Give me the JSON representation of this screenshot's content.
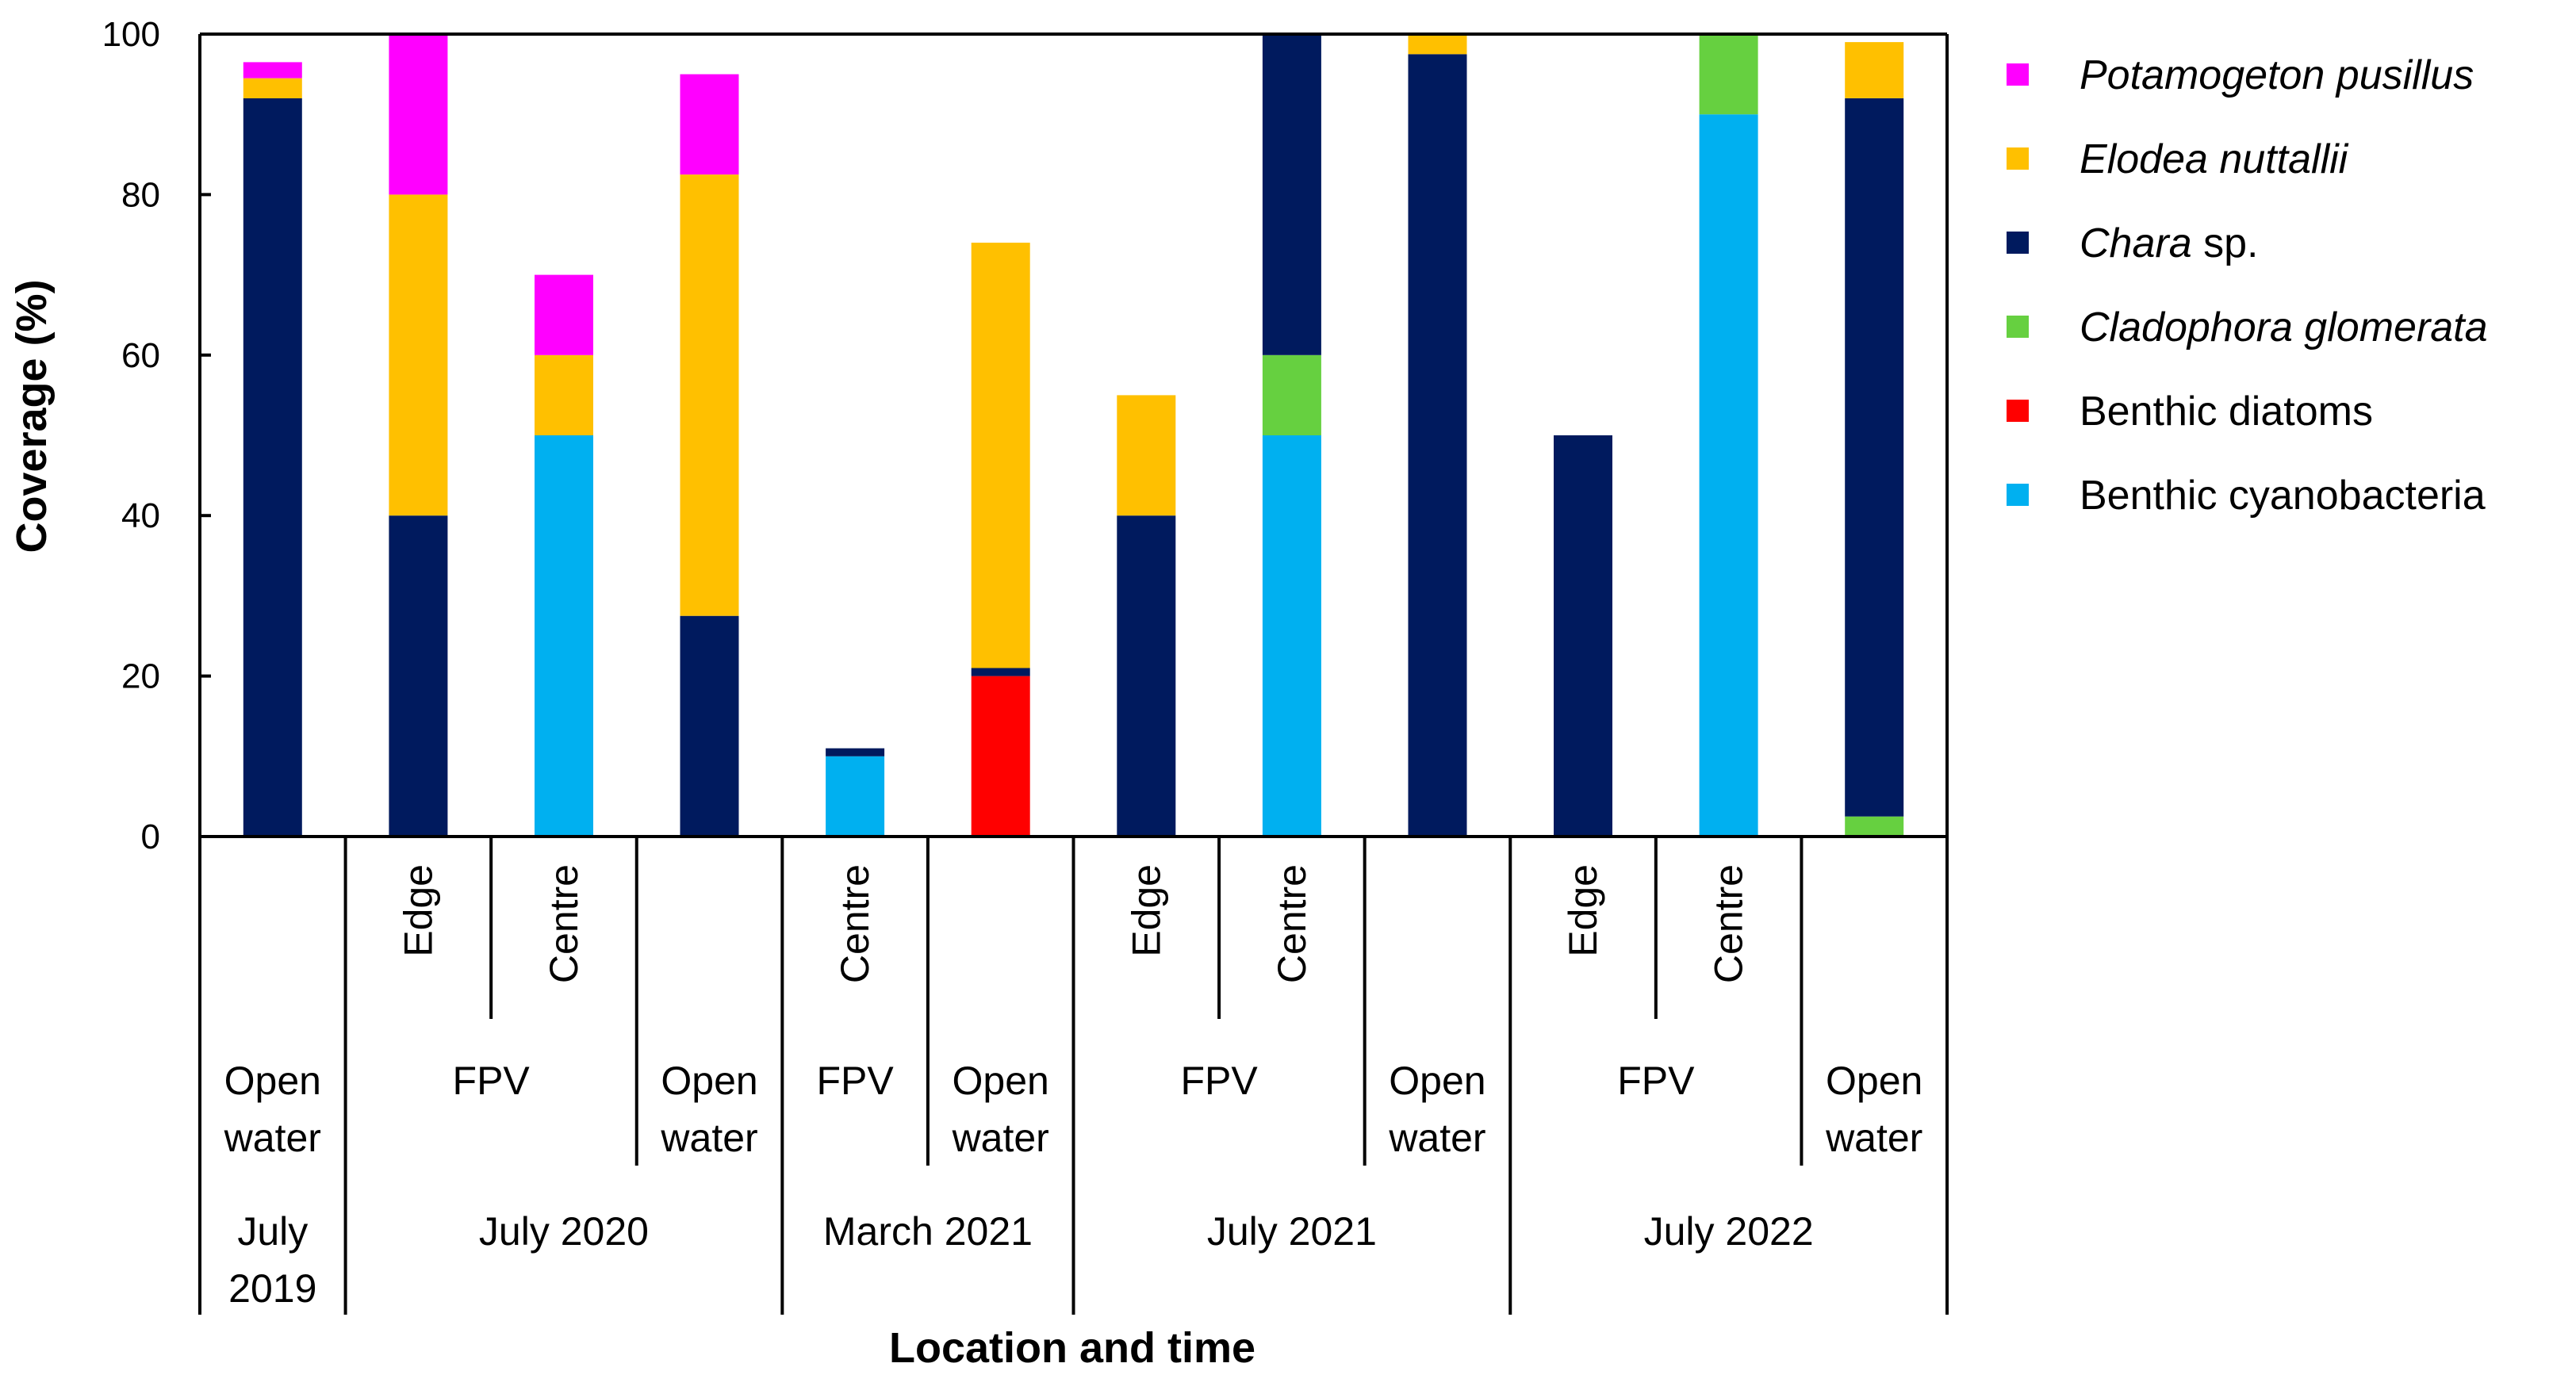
{
  "chart_data": {
    "type": "bar",
    "stacked": true,
    "xlabel": "Location and time",
    "ylabel": "Coverage (%)",
    "ylim": [
      0,
      100
    ],
    "yticks": [
      0,
      20,
      40,
      60,
      80,
      100
    ],
    "grid": false,
    "legend_position": "right",
    "categories": [
      {
        "sub": "",
        "location": "Open water",
        "time": "July 2019"
      },
      {
        "sub": "Edge",
        "location": "FPV",
        "time": "July 2020"
      },
      {
        "sub": "Centre",
        "location": "FPV",
        "time": "July 2020"
      },
      {
        "sub": "",
        "location": "Open water",
        "time": "July 2020"
      },
      {
        "sub": "Centre",
        "location": "FPV",
        "time": "March 2021"
      },
      {
        "sub": "",
        "location": "Open water",
        "time": "March 2021"
      },
      {
        "sub": "Edge",
        "location": "FPV",
        "time": "July 2021"
      },
      {
        "sub": "Centre",
        "location": "FPV",
        "time": "July 2021"
      },
      {
        "sub": "",
        "location": "Open water",
        "time": "July 2021"
      },
      {
        "sub": "Edge",
        "location": "FPV",
        "time": "July 2022"
      },
      {
        "sub": "Centre",
        "location": "FPV",
        "time": "July 2022"
      },
      {
        "sub": "",
        "location": "Open water",
        "time": "July 2022"
      }
    ],
    "tier_labels": {
      "sub": [
        "Edge",
        "Centre",
        "Centre",
        "Edge",
        "Centre",
        "Edge",
        "Centre"
      ],
      "location": [
        [
          "Open",
          "water"
        ],
        [
          "FPV"
        ],
        [
          "Open",
          "water"
        ],
        [
          "FPV"
        ],
        [
          "Open",
          "water"
        ],
        [
          "FPV"
        ],
        [
          "Open",
          "water"
        ],
        [
          "FPV"
        ],
        [
          "Open",
          "water"
        ]
      ],
      "time": [
        [
          "July",
          "2019"
        ],
        [
          "July 2020"
        ],
        [
          "March 2021"
        ],
        [
          "July 2021"
        ],
        [
          "July 2022"
        ]
      ]
    },
    "series": [
      {
        "name": "Benthic cyanobacteria",
        "italic": false,
        "color": "#00B0F0",
        "values": [
          0,
          0,
          50,
          0,
          10,
          0,
          0,
          50,
          0,
          0,
          90,
          0
        ]
      },
      {
        "name": "Benthic diatoms",
        "italic": false,
        "color": "#FF0000",
        "values": [
          0,
          0,
          0,
          0,
          0,
          20,
          0,
          0,
          0,
          0,
          0,
          0
        ]
      },
      {
        "name": "Cladophora glomerata",
        "italic": true,
        "color": "#66D040",
        "values": [
          0,
          0,
          0,
          0,
          0,
          0,
          0,
          10,
          0,
          0,
          10,
          2.5
        ]
      },
      {
        "name": "Chara sp.",
        "italic_part": "Chara",
        "plain_part": " sp.",
        "color": "#001A5E",
        "values": [
          92,
          40,
          0,
          27.5,
          1,
          1,
          40,
          40,
          97.5,
          50,
          0,
          89.5
        ]
      },
      {
        "name": "Elodea nuttallii",
        "italic": true,
        "color": "#FFC000",
        "values": [
          2.5,
          40,
          10,
          55,
          0,
          53,
          15,
          0,
          2.5,
          0,
          0,
          7
        ]
      },
      {
        "name": "Potamogeton pusillus",
        "italic": true,
        "color": "#FF00FF",
        "values": [
          2,
          20,
          10,
          12.5,
          0,
          0,
          0,
          0,
          0,
          0,
          0,
          0
        ]
      }
    ],
    "legend_order": [
      "Potamogeton pusillus",
      "Elodea nuttallii",
      "Chara sp.",
      "Cladophora glomerata",
      "Benthic diatoms",
      "Benthic cyanobacteria"
    ]
  }
}
